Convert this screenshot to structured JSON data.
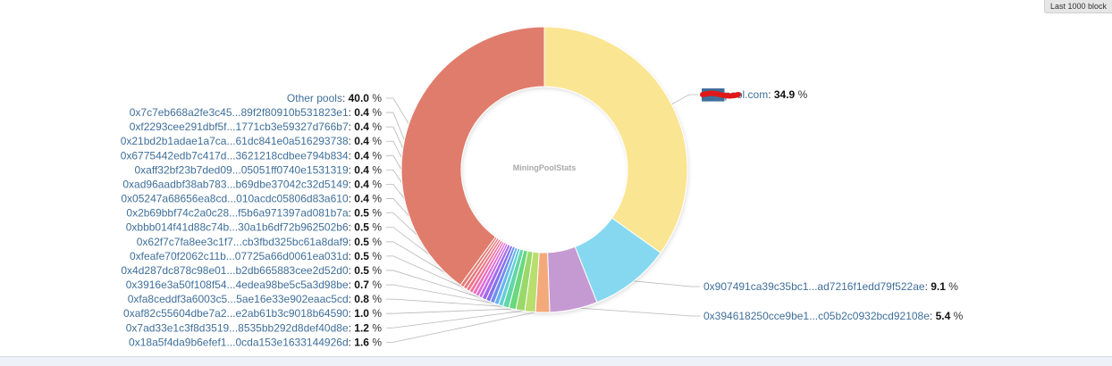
{
  "header": {
    "badge_label": "Last 1000 block"
  },
  "chart_data": {
    "type": "pie",
    "variant": "donut",
    "center_label": "MiningPoolStats",
    "unit": "%",
    "slices": [
      {
        "label": "███pool.com",
        "value": 34.9,
        "color": "#fae592",
        "redacted_prefix": true
      },
      {
        "label": "0x907491ca39c35bc1...ad7216f1edd79f522ae",
        "value": 9.1,
        "color": "#86d8f0"
      },
      {
        "label": "0x394618250cce9be1...c05b2c0932bcd92108e",
        "value": 5.4,
        "color": "#c59ad2"
      },
      {
        "label": "0x18a5f4da9b6efef1...0cda153e1633144926d",
        "value": 1.6,
        "color": "#f3a97a"
      },
      {
        "label": "0x7ad33e1c3f8d3519...8535bb292d8def40d8e",
        "value": 1.2,
        "color": "#b8de6e"
      },
      {
        "label": "0xaf82c55604dbe7a2...e2ab61b3c9018b64590",
        "value": 1.0,
        "color": "#9ad86a"
      },
      {
        "label": "0xfa8ceddf3a6003c5...5ae16e33e902eaac5cd",
        "value": 0.8,
        "color": "#6ad87c"
      },
      {
        "label": "0x3916e3a50f108f54...4edea98be5c5a3d98be",
        "value": 0.7,
        "color": "#64d6a8"
      },
      {
        "label": "0x4d287dc878c98e01...b2db665883cee2d52d0",
        "value": 0.5,
        "color": "#62cfd4"
      },
      {
        "label": "0xfeafe70f2062c11b...07725a66d0061ea031d",
        "value": 0.5,
        "color": "#6ab4ee"
      },
      {
        "label": "0x62f7c7fa8ee3c1f7...cb3fbd325bc61a8daf9",
        "value": 0.5,
        "color": "#6f8ef0"
      },
      {
        "label": "0xbbb014f41d88c74b...30a1b6df72b962502b6",
        "value": 0.5,
        "color": "#8470ee"
      },
      {
        "label": "0x2b69bbf74c2a0c28...f5b6a971397ad081b7a",
        "value": 0.5,
        "color": "#a36aec"
      },
      {
        "label": "0x05247a68656ea8cd...010acdc05806d83a610",
        "value": 0.4,
        "color": "#c56ae6"
      },
      {
        "label": "0xad96aadbf38ab783...b69dbe37042c32d5149",
        "value": 0.4,
        "color": "#de6ed6"
      },
      {
        "label": "0xaff32bf23b7ded09...05051ff0740e1531319",
        "value": 0.4,
        "color": "#ec70bc"
      },
      {
        "label": "0x6775442edb7c417d...3621218cdbee794b834",
        "value": 0.4,
        "color": "#f0729e"
      },
      {
        "label": "0x21bd2b1adae1a7ca...61dc841e0a516293738",
        "value": 0.4,
        "color": "#ee7486"
      },
      {
        "label": "0xf2293cee291dbf5f...1771cb3e59327d766b7",
        "value": 0.4,
        "color": "#e8787a"
      },
      {
        "label": "0x7c7eb668a2fe3c45...89f2f80910b531823e1",
        "value": 0.4,
        "color": "#e27b72"
      },
      {
        "label": "Other pools",
        "value": 40.0,
        "color": "#e07b6c"
      }
    ],
    "legend": "none",
    "labels_position": "outside-with-leaders"
  }
}
